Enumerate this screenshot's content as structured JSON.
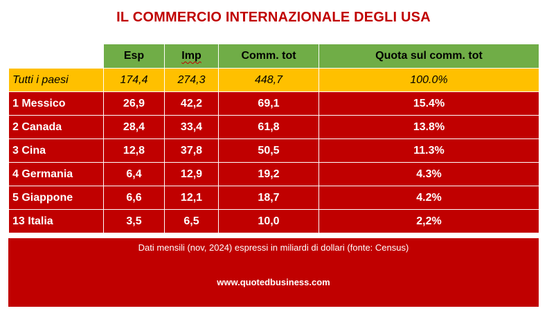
{
  "title": "IL COMMERCIO INTERNAZIONALE DEGLI USA",
  "chart_data": {
    "type": "table",
    "columns": [
      "",
      "Esp",
      "Imp",
      "Comm. tot",
      "Quota sul comm. tot"
    ],
    "total": {
      "name": "Tutti i paesi",
      "esp": "174,4",
      "imp": "274,3",
      "tot": "448,7",
      "quota": "100.0%"
    },
    "rows": [
      {
        "name": "1 Messico",
        "esp": "26,9",
        "imp": "42,2",
        "tot": "69,1",
        "quota": "15.4%"
      },
      {
        "name": "2 Canada",
        "esp": "28,4",
        "imp": "33,4",
        "tot": "61,8",
        "quota": "13.8%"
      },
      {
        "name": "3 Cina",
        "esp": "12,8",
        "imp": "37,8",
        "tot": "50,5",
        "quota": "11.3%"
      },
      {
        "name": "4 Germania",
        "esp": "6,4",
        "imp": "12,9",
        "tot": "19,2",
        "quota": "4.3%"
      },
      {
        "name": "5 Giappone",
        "esp": "6,6",
        "imp": "12,1",
        "tot": "18,7",
        "quota": "4.2%"
      },
      {
        "name": "13 Italia",
        "esp": "3,5",
        "imp": "6,5",
        "tot": "10,0",
        "quota": "2,2%"
      }
    ]
  },
  "footer": {
    "note": "Dati mensili (nov, 2024) espressi in miliardi di dollari (fonte: Census)",
    "site": "www.quotedbusiness.com"
  },
  "colors": {
    "title": "#c00000",
    "header": "#70ad47",
    "total_row": "#ffc000",
    "rows": "#c00000"
  }
}
